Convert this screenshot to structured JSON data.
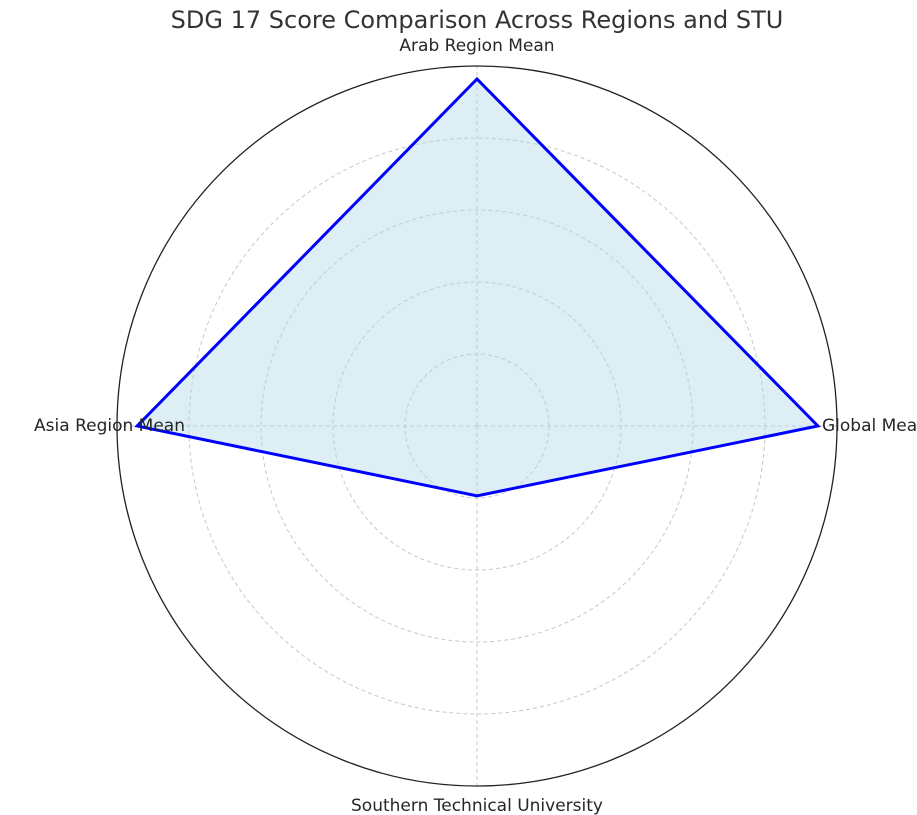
{
  "chart_data": {
    "type": "radar",
    "title": "SDG 17 Score Comparison Across Regions and STU",
    "categories": [
      "Global Mean",
      "Arab Region Mean",
      "Asia Region Mean",
      "Southern Technical University"
    ],
    "series": [
      {
        "color": "#0000ff",
        "fill": "#add8e6",
        "values": [
          94.7,
          96.4,
          94.4,
          19.4
        ]
      }
    ],
    "ylim": [
      0,
      100
    ],
    "yticks": [
      20,
      40,
      60,
      80
    ],
    "grid": true
  }
}
